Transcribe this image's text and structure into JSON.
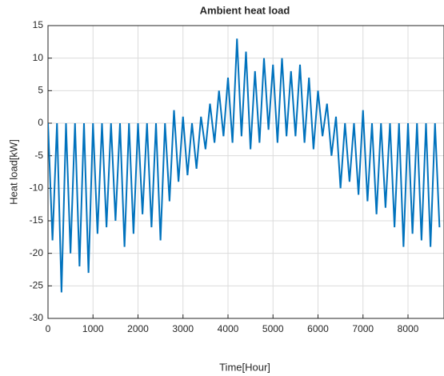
{
  "chart_data": {
    "type": "line",
    "title": "Ambient heat load",
    "x_label": "Time[Hour]",
    "y_label": "Heat load[kW]",
    "x": [
      0,
      100,
      200,
      300,
      400,
      500,
      600,
      700,
      800,
      900,
      1000,
      1100,
      1200,
      1300,
      1400,
      1500,
      1600,
      1700,
      1800,
      1900,
      2000,
      2100,
      2200,
      2300,
      2400,
      2500,
      2600,
      2700,
      2800,
      2900,
      3000,
      3100,
      3200,
      3300,
      3400,
      3500,
      3600,
      3700,
      3800,
      3900,
      4000,
      4100,
      4200,
      4300,
      4400,
      4500,
      4600,
      4700,
      4800,
      4900,
      5000,
      5100,
      5200,
      5300,
      5400,
      5500,
      5600,
      5700,
      5800,
      5900,
      6000,
      6100,
      6200,
      6300,
      6400,
      6500,
      6600,
      6700,
      6800,
      6900,
      7000,
      7100,
      7200,
      7300,
      7400,
      7500,
      7600,
      7700,
      7800,
      7900,
      8000,
      8100,
      8200,
      8300,
      8400,
      8500,
      8600,
      8700
    ],
    "series": [
      {
        "color": "#0072bd",
        "values": [
          0,
          -18,
          0,
          -26,
          0,
          -20,
          0,
          -22,
          0,
          -23,
          0,
          -17,
          0,
          -16,
          0,
          -15,
          0,
          -19,
          0,
          -17,
          0,
          -14,
          0,
          -16,
          0,
          -18,
          0,
          -12,
          2,
          -9,
          1,
          -8,
          0,
          -7,
          1,
          -4,
          3,
          -3,
          5,
          -2,
          7,
          -3,
          13,
          -2,
          11,
          -4,
          8,
          -3,
          10,
          -1,
          9,
          -3,
          10,
          -2,
          8,
          -2,
          9,
          -3,
          7,
          -4,
          5,
          -2,
          3,
          -5,
          1,
          -10,
          0,
          -9,
          0,
          -11,
          2,
          -12,
          0,
          -14,
          0,
          -13,
          0,
          -16,
          0,
          -19,
          0,
          -17,
          0,
          -18,
          0,
          -19,
          0,
          -16
        ]
      }
    ],
    "xlim": [
      0,
      8760
    ],
    "ylim": [
      -30,
      15
    ],
    "xticks": [
      0,
      1000,
      2000,
      3000,
      4000,
      5000,
      6000,
      7000,
      8000
    ],
    "yticks": [
      -30,
      -25,
      -20,
      -15,
      -10,
      -5,
      0,
      5,
      10,
      15
    ],
    "grid": true
  }
}
